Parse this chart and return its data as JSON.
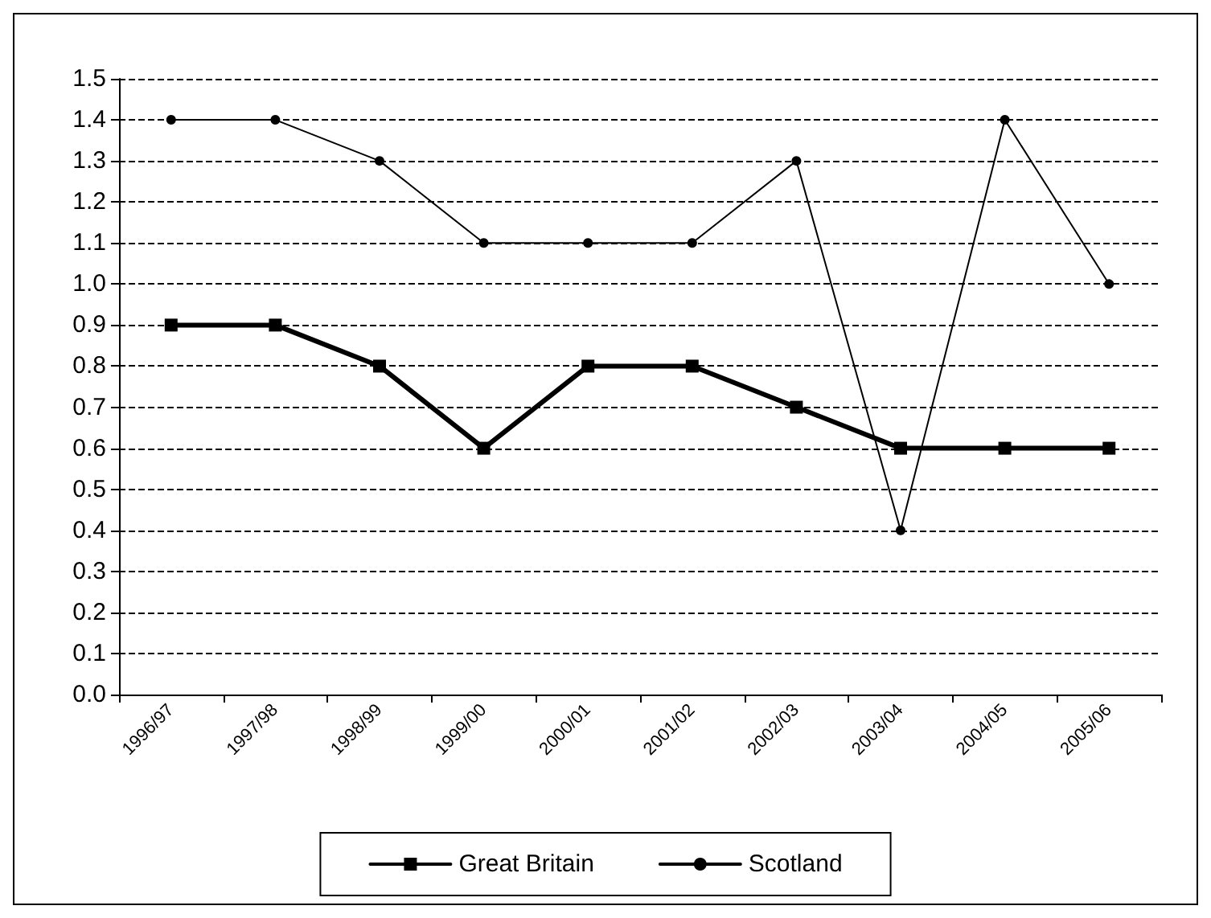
{
  "chart_data": {
    "type": "line",
    "categories": [
      "1996/97",
      "1997/98",
      "1998/99",
      "1999/00",
      "2000/01",
      "2001/02",
      "2002/03",
      "2003/04",
      "2004/05",
      "2005/06"
    ],
    "series": [
      {
        "name": "Great Britain",
        "color": "#000000",
        "marker": "square",
        "values": [
          0.9,
          0.9,
          0.8,
          0.6,
          0.8,
          0.8,
          0.7,
          0.6,
          0.6,
          0.6
        ]
      },
      {
        "name": "Scotland",
        "color": "#000000",
        "marker": "circle",
        "values": [
          1.4,
          1.4,
          1.3,
          1.1,
          1.1,
          1.1,
          1.3,
          0.4,
          1.4,
          1.0
        ]
      }
    ],
    "ylim": [
      0,
      1.5
    ],
    "yticks": [
      {
        "value": 0,
        "label": "0.0"
      },
      0.1,
      0.2,
      0.3,
      0.4,
      0.5,
      0.6,
      0.7,
      0.8,
      0.9,
      {
        "value": 1,
        "label": "1.0"
      },
      1.1,
      1.2,
      1.3,
      1.4,
      1.5
    ],
    "grid": "y",
    "legend": "bottom",
    "line_style": "solid"
  }
}
